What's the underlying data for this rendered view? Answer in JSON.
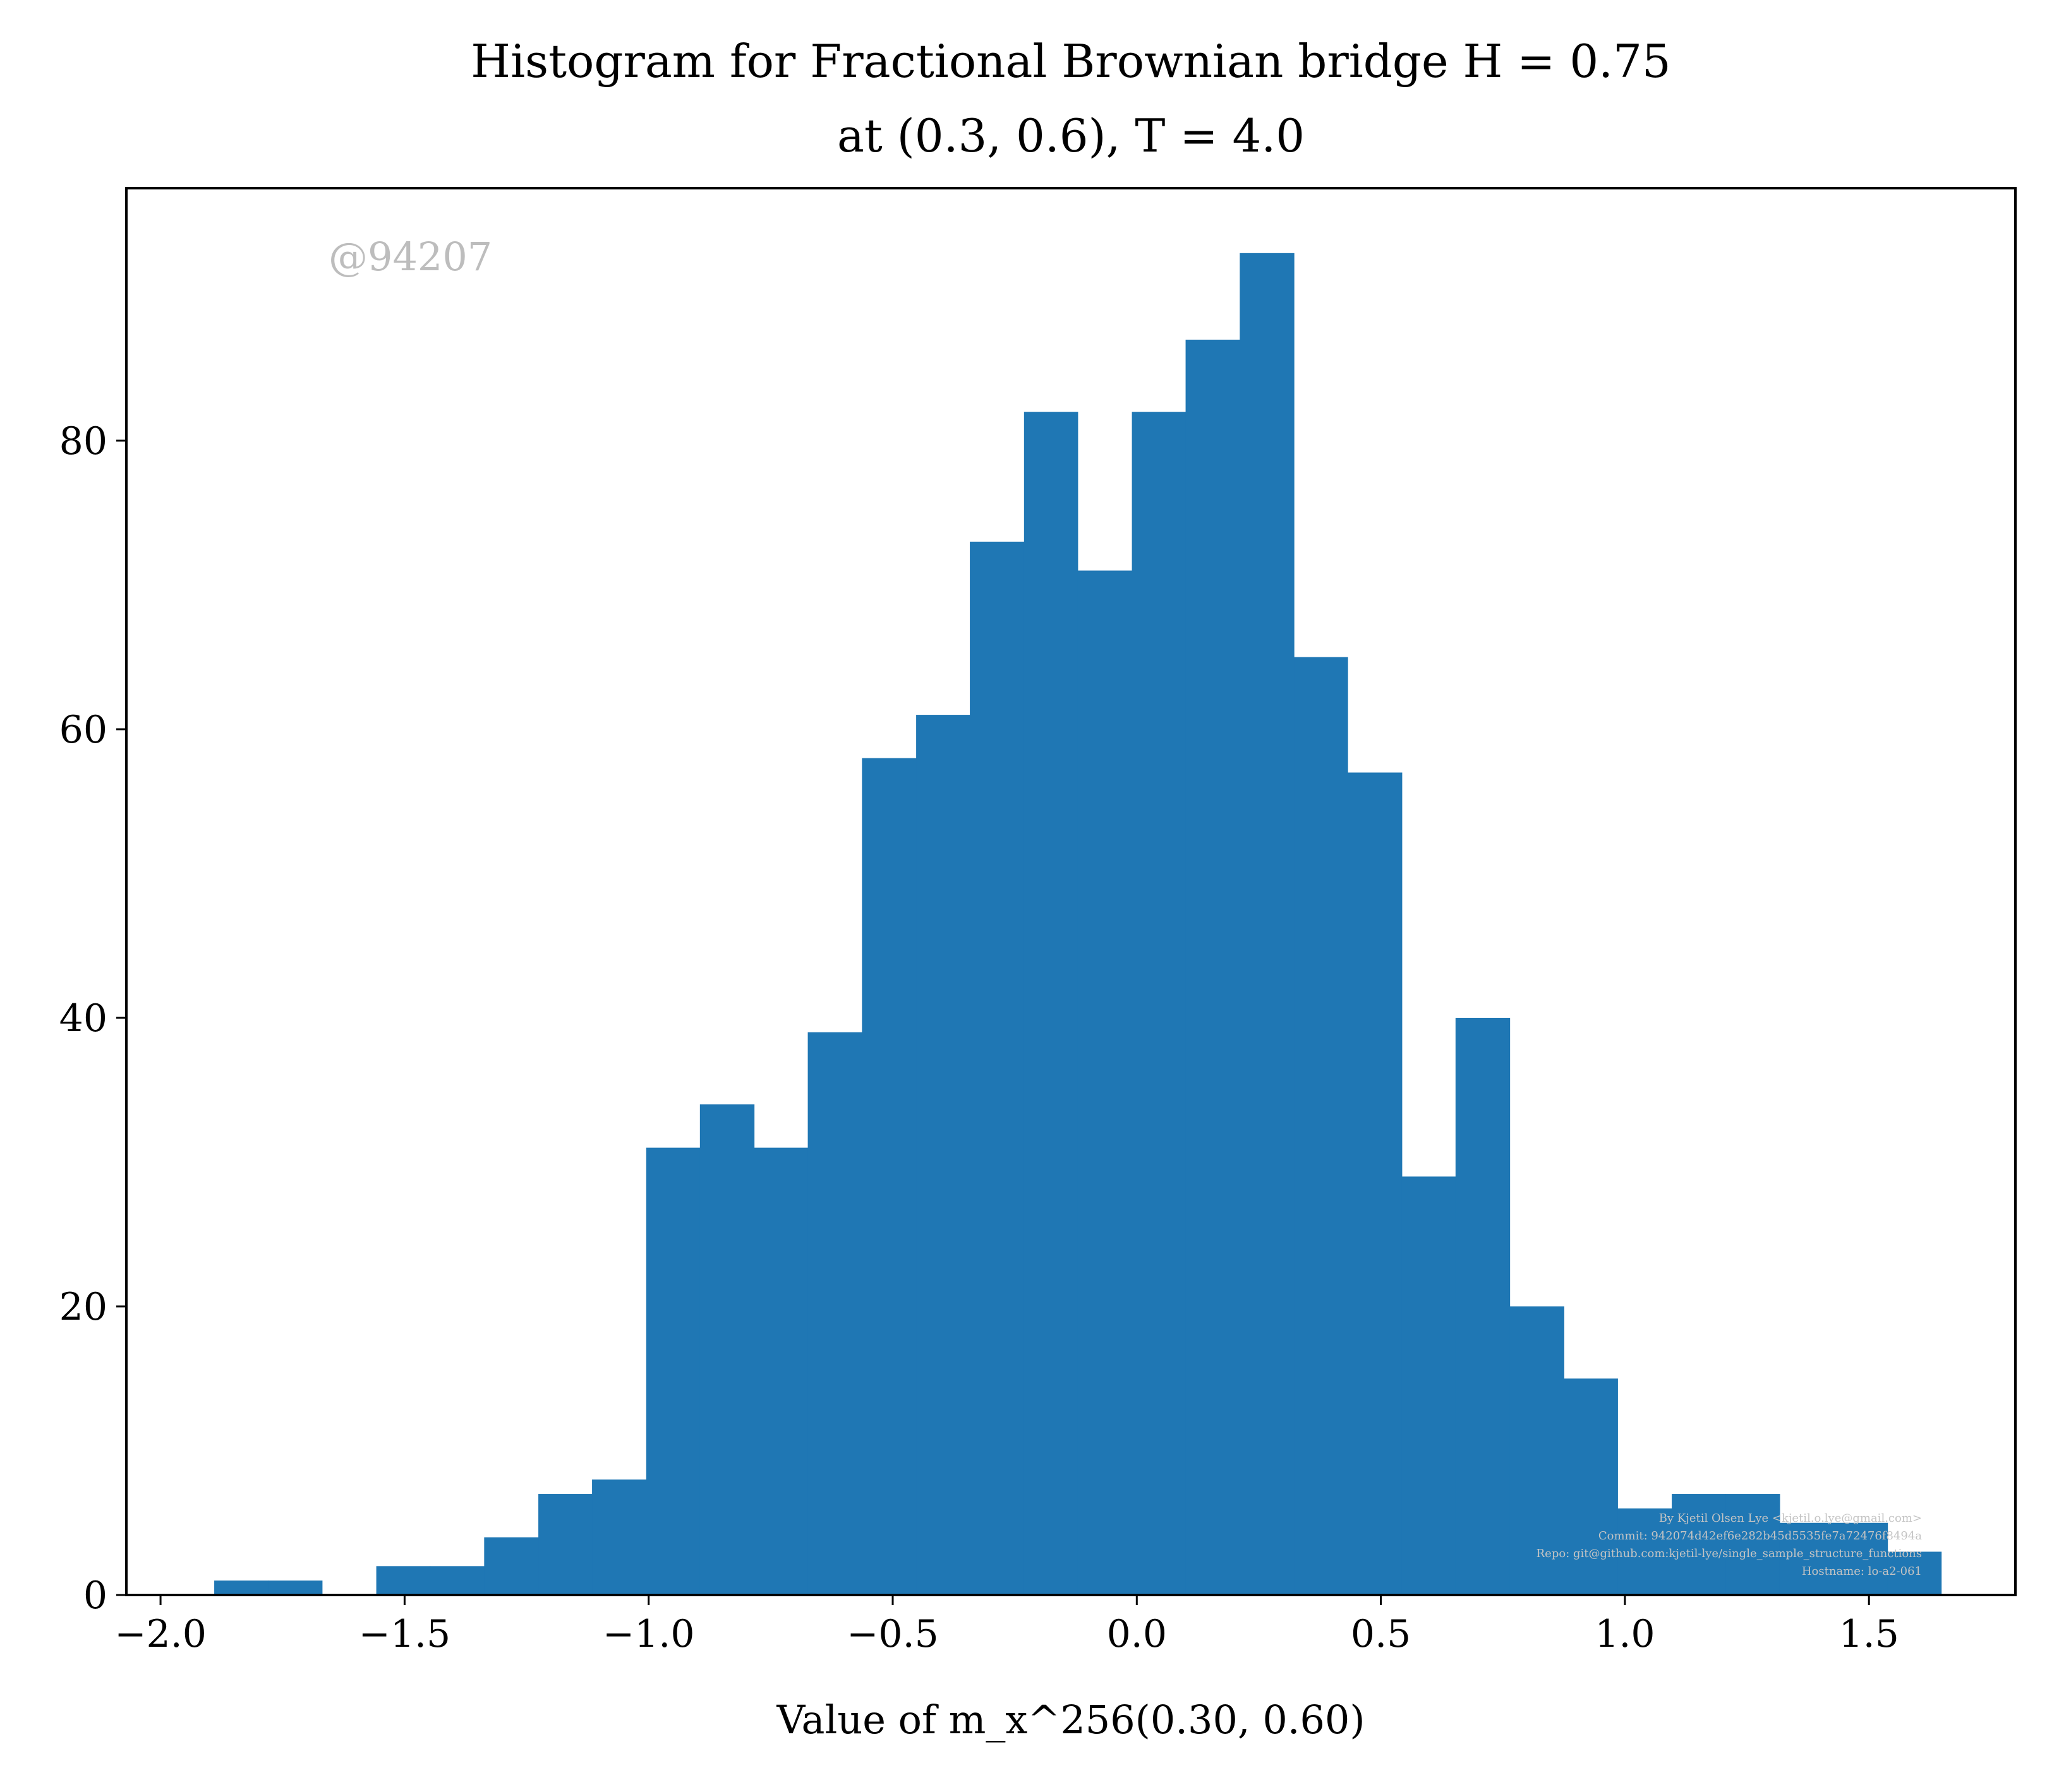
{
  "chart_data": {
    "type": "bar",
    "title_line1": "Histogram for Fractional Brownian bridge H = 0.75",
    "title_line2": "at (0.3, 0.6), T = 4.0",
    "xlabel": "Value of m_x^256(0.30, 0.60)",
    "ylabel": "",
    "xlim": [
      -2.07,
      1.8
    ],
    "ylim": [
      0,
      97.5
    ],
    "x_ticks": [
      {
        "value": -2.0,
        "label": "−2.0"
      },
      {
        "value": -1.5,
        "label": "−1.5"
      },
      {
        "value": -1.0,
        "label": "−1.0"
      },
      {
        "value": -0.5,
        "label": "−0.5"
      },
      {
        "value": 0.0,
        "label": "0.0"
      },
      {
        "value": 0.5,
        "label": "0.5"
      },
      {
        "value": 1.0,
        "label": "1.0"
      },
      {
        "value": 1.5,
        "label": "1.5"
      }
    ],
    "y_ticks": [
      {
        "value": 0,
        "label": "0"
      },
      {
        "value": 20,
        "label": "20"
      },
      {
        "value": 40,
        "label": "40"
      },
      {
        "value": 60,
        "label": "60"
      },
      {
        "value": 80,
        "label": "80"
      }
    ],
    "bin_edges": [
      -1.89,
      -1.779,
      -1.669,
      -1.558,
      -1.448,
      -1.337,
      -1.226,
      -1.116,
      -1.005,
      -0.895,
      -0.784,
      -0.674,
      -0.563,
      -0.452,
      -0.342,
      -0.231,
      -0.121,
      -0.01,
      0.1,
      0.211,
      0.322,
      0.432,
      0.543,
      0.653,
      0.764,
      0.875,
      0.985,
      1.096,
      1.206,
      1.317,
      1.427,
      1.538,
      1.648
    ],
    "counts": [
      1,
      1,
      0,
      2,
      2,
      4,
      7,
      8,
      31,
      34,
      31,
      39,
      58,
      61,
      73,
      82,
      71,
      82,
      87,
      93,
      65,
      57,
      29,
      40,
      20,
      15,
      6,
      7,
      7,
      5,
      5,
      3
    ],
    "bar_color": "#1f77b4",
    "grid": false,
    "legend": "none"
  },
  "watermark": "@94207",
  "credit_lines": [
    "By Kjetil Olsen Lye <kjetil.o.lye@gmail.com>",
    "Commit: 942074d42ef6e282b45d5535fe7a72476f8494a",
    "Repo: git@github.com:kjetil-lye/single_sample_structure_functions",
    "Hostname: lo-a2-061"
  ],
  "colors": {
    "bar": "#1f77b4",
    "axis": "#000000",
    "watermark": "#bdbdbd"
  }
}
